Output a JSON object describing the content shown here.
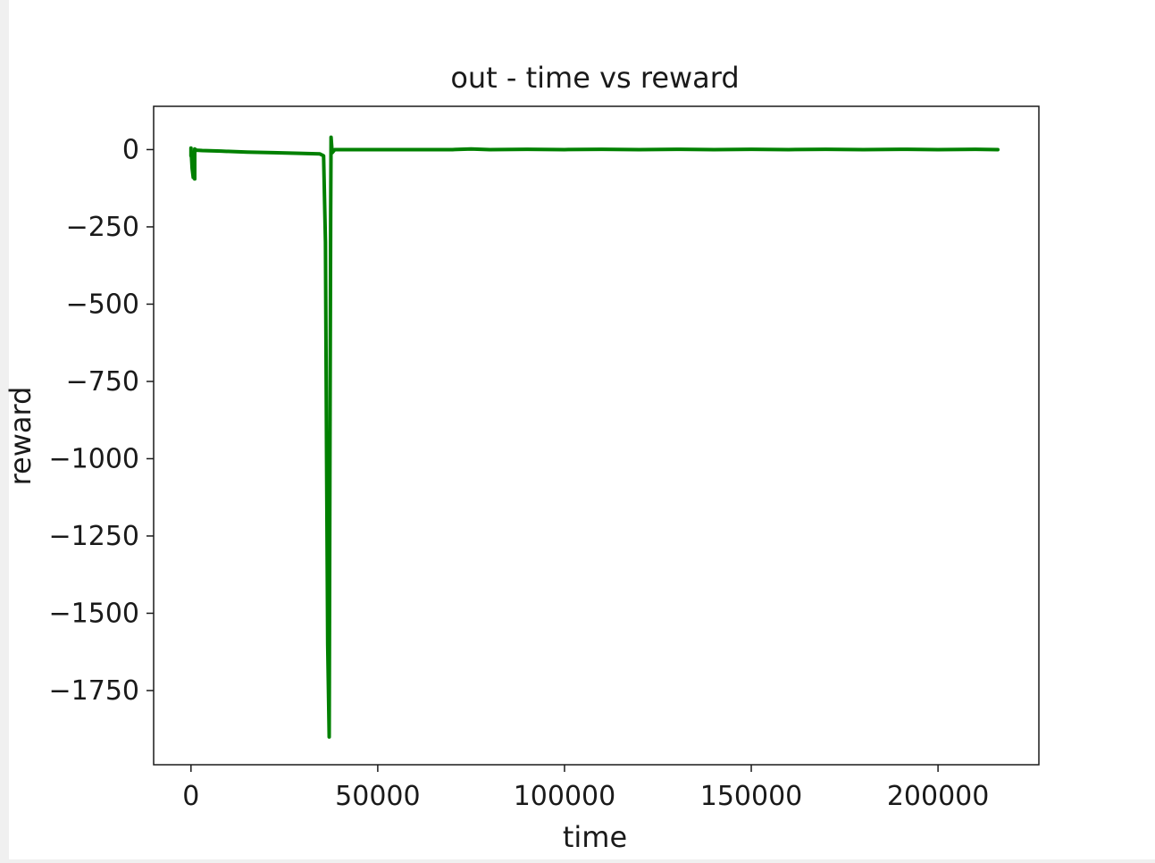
{
  "chart_data": {
    "type": "line",
    "title": "out - time vs reward",
    "xlabel": "time",
    "ylabel": "reward",
    "xlim": [
      -10000,
      227000
    ],
    "ylim": [
      -1990,
      140
    ],
    "xticks": [
      0,
      50000,
      100000,
      150000,
      200000
    ],
    "xtick_labels": [
      "0",
      "50000",
      "100000",
      "150000",
      "200000"
    ],
    "yticks": [
      0,
      -250,
      -500,
      -750,
      -1000,
      -1250,
      -1500,
      -1750
    ],
    "ytick_labels": [
      "0",
      "−250",
      "−500",
      "−750",
      "−1000",
      "−1250",
      "−1500",
      "−1750"
    ],
    "grid": false,
    "series": [
      {
        "color": "#008000",
        "x": [
          0,
          0,
          0,
          300,
          600,
          800,
          1000,
          1000,
          1200,
          1500,
          3000,
          8000,
          15000,
          22000,
          29000,
          34500,
          35500,
          36000,
          36300,
          36600,
          37000,
          37200,
          37400,
          37500,
          37800,
          38500,
          40000,
          50000,
          60000,
          70000,
          75000,
          80000,
          90000,
          100000,
          110000,
          120000,
          130000,
          140000,
          150000,
          160000,
          170000,
          180000,
          190000,
          200000,
          210000,
          216000
        ],
        "y": [
          0,
          -20,
          5,
          -60,
          -90,
          -30,
          -95,
          2,
          0,
          -2,
          -3,
          -5,
          -8,
          -10,
          -12,
          -14,
          -20,
          -300,
          -1000,
          -1600,
          -1900,
          -1000,
          -200,
          40,
          -10,
          0,
          0,
          0,
          0,
          0,
          2,
          0,
          1,
          0,
          1,
          0,
          1,
          0,
          1,
          0,
          1,
          0,
          1,
          0,
          1,
          0
        ]
      }
    ]
  }
}
